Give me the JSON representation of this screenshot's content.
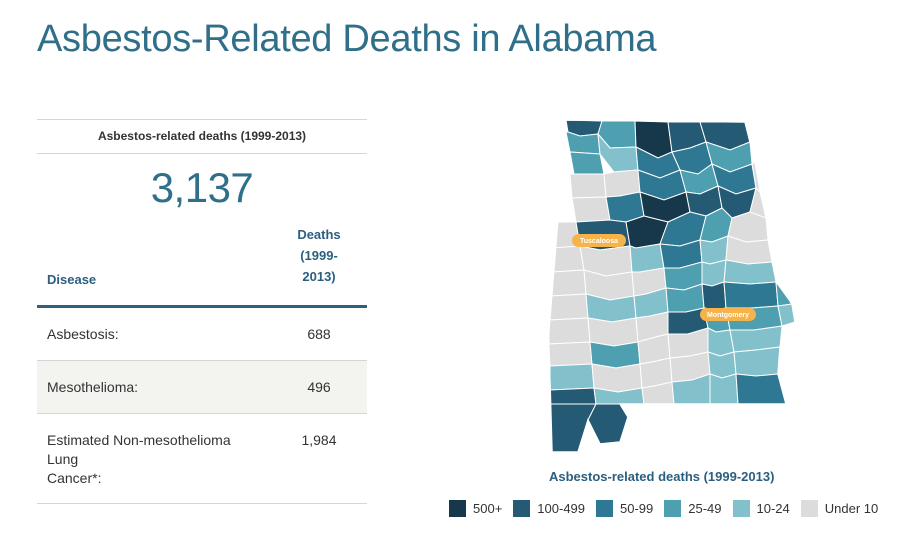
{
  "page": {
    "title": "Asbestos-Related Deaths in Alabama"
  },
  "stats": {
    "header": "Asbestos-related deaths (1999-2013)",
    "total": "3,137"
  },
  "table": {
    "headers": {
      "disease": "Disease",
      "deaths_l1": "Deaths",
      "deaths_l2": "(1999-",
      "deaths_l3": "2013)"
    },
    "rows": [
      {
        "disease": "Asbestosis:",
        "deaths": "688"
      },
      {
        "disease": "Mesothelioma:",
        "deaths": "496"
      },
      {
        "disease": "Estimated Non-mesothelioma Lung",
        "disease_l2": "Cancer*:",
        "deaths": "1,984"
      }
    ]
  },
  "map": {
    "caption": "Asbestos-related deaths (1999-2013)",
    "cities": [
      {
        "name": "Tuscaloosa"
      },
      {
        "name": "Montgomery"
      }
    ],
    "colors": {
      "c500": "#17384a",
      "c100": "#245a73",
      "c50": "#2f7893",
      "c25": "#4e9fb0",
      "c10": "#82c0cc",
      "cu10": "#dcdcdc",
      "border": "#ffffff",
      "label_bg": "#f5b34a"
    },
    "legend": [
      {
        "label": "500+",
        "color": "#17384a"
      },
      {
        "label": "100-499",
        "color": "#245a73"
      },
      {
        "label": "50-99",
        "color": "#2f7893"
      },
      {
        "label": "25-49",
        "color": "#4e9fb0"
      },
      {
        "label": "10-24",
        "color": "#82c0cc"
      },
      {
        "label": "Under 10",
        "color": "#dcdcdc"
      }
    ]
  }
}
